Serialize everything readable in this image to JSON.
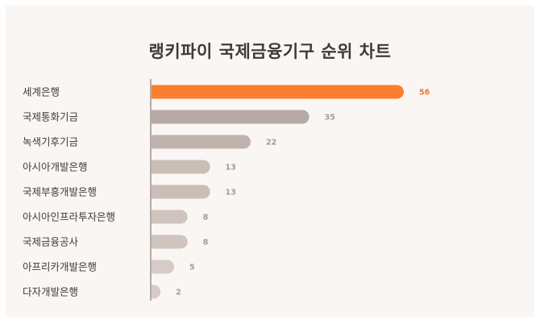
{
  "chart_data": {
    "type": "bar",
    "orientation": "horizontal",
    "title": "랭키파이 국제금융기구 순위 차트",
    "categories": [
      "세계은행",
      "국제통화기금",
      "녹색기후기금",
      "아시아개발은행",
      "국제부흥개발은행",
      "아시아인프라투자은행",
      "국제금융공사",
      "아프리카개발은행",
      "다자개발은행"
    ],
    "values": [
      56,
      35,
      22,
      13,
      13,
      8,
      8,
      5,
      2
    ],
    "xlim": [
      0,
      56
    ],
    "grid": false,
    "legend": false,
    "colors": {
      "highlight_bar": "#fd7e2c",
      "highlight_label": "#f5771f",
      "bar_gradient": [
        "#ab9f9b",
        "#b6aaa5",
        "#c0b3ad",
        "#cabdb6",
        "#cbbeb8",
        "#d0c4be",
        "#d0c4be",
        "#d6cbc6",
        "#d6cbc6"
      ],
      "value_label": "#a59b97",
      "axis": "#b5aca7",
      "category_label": "#3e3a38",
      "background": "#f9f6f4"
    }
  }
}
